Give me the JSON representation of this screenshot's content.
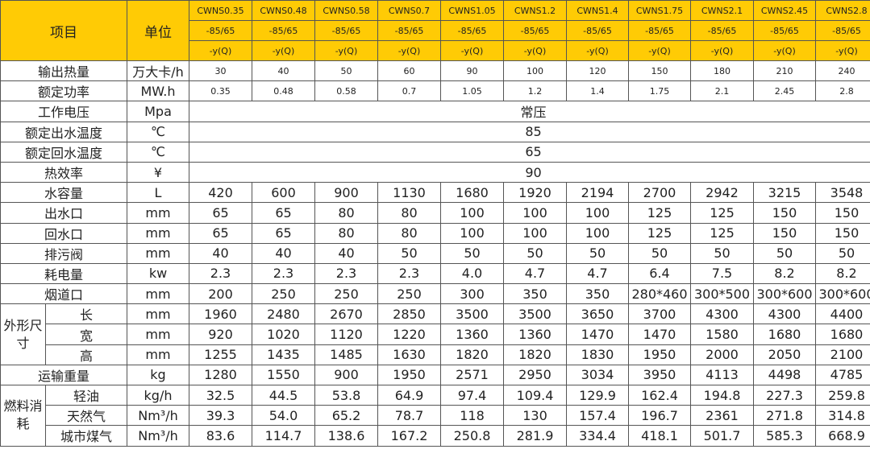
{
  "header": {
    "item_label": "项目",
    "unit_label": "单位",
    "models": [
      "CWNS0.35",
      "CWNS0.48",
      "CWNS0.58",
      "CWNS0.7",
      "CWNS1.05",
      "CWNS1.2",
      "CWNS1.4",
      "CWNS1.75",
      "CWNS2.1",
      "CWNS2.45",
      "CWNS2.8"
    ],
    "pressure_text": "-85/65",
    "type_text": "-y(Q)"
  },
  "rows": [
    {
      "label": "输出热量",
      "unit": "万大卡/h",
      "size": "sm",
      "values": [
        "30",
        "40",
        "50",
        "60",
        "90",
        "100",
        "120",
        "150",
        "180",
        "210",
        "240"
      ]
    },
    {
      "label": "额定功率",
      "unit": "MW.h",
      "size": "sm",
      "values": [
        "0.35",
        "0.48",
        "0.58",
        "0.7",
        "1.05",
        "1.2",
        "1.4",
        "1.75",
        "2.1",
        "2.45",
        "2.8"
      ]
    },
    {
      "label": "工作电压",
      "unit": "Mpa",
      "merged": "常压"
    },
    {
      "label": "额定出水温度",
      "unit": "℃",
      "merged": "85"
    },
    {
      "label": "额定回水温度",
      "unit": "℃",
      "merged": "65"
    },
    {
      "label": "热效率",
      "unit": "¥",
      "merged": "90"
    },
    {
      "label": "水容量",
      "unit": "L",
      "values": [
        "420",
        "600",
        "900",
        "1130",
        "1680",
        "1920",
        "2194",
        "2700",
        "2942",
        "3215",
        "3548"
      ]
    },
    {
      "label": "出水口",
      "unit": "mm",
      "values": [
        "65",
        "65",
        "80",
        "80",
        "100",
        "100",
        "100",
        "125",
        "125",
        "150",
        "150"
      ]
    },
    {
      "label": "回水口",
      "unit": "mm",
      "values": [
        "65",
        "65",
        "80",
        "80",
        "100",
        "100",
        "100",
        "125",
        "125",
        "150",
        "150"
      ]
    },
    {
      "label": "排污阀",
      "unit": "mm",
      "values": [
        "40",
        "40",
        "40",
        "50",
        "50",
        "50",
        "50",
        "50",
        "50",
        "50",
        "50"
      ]
    },
    {
      "label": "耗电量",
      "unit": "kw",
      "values": [
        "2.3",
        "2.3",
        "2.3",
        "2.3",
        "4.0",
        "4.7",
        "4.7",
        "6.4",
        "7.5",
        "8.2",
        "8.2"
      ]
    },
    {
      "label": "烟道口",
      "unit": "mm",
      "values": [
        "200",
        "250",
        "250",
        "250",
        "300",
        "350",
        "350",
        "280*460",
        "300*500",
        "300*600",
        "300*600"
      ]
    },
    {
      "group": "外形尺寸",
      "sub": "长",
      "unit": "mm",
      "values": [
        "1960",
        "2480",
        "2670",
        "2850",
        "3500",
        "3500",
        "3650",
        "3700",
        "4300",
        "4300",
        "4400"
      ]
    },
    {
      "group": "外形尺寸",
      "sub": "宽",
      "unit": "mm",
      "values": [
        "920",
        "1020",
        "1120",
        "1220",
        "1360",
        "1360",
        "1470",
        "1470",
        "1580",
        "1680",
        "1680"
      ]
    },
    {
      "group": "外形尺寸",
      "sub": "高",
      "unit": "mm",
      "values": [
        "1255",
        "1435",
        "1485",
        "1630",
        "1820",
        "1820",
        "1830",
        "1950",
        "2000",
        "2050",
        "2100"
      ]
    },
    {
      "label": "运输重量",
      "unit": "kg",
      "values": [
        "1280",
        "1550",
        "900",
        "1950",
        "2571",
        "2950",
        "3034",
        "3950",
        "4113",
        "4498",
        "4785"
      ]
    },
    {
      "group": "燃料消耗",
      "sub": "轻油",
      "unit": "kg/h",
      "values": [
        "32.5",
        "44.5",
        "53.8",
        "64.9",
        "97.4",
        "109.4",
        "129.9",
        "162.4",
        "194.8",
        "227.3",
        "259.8"
      ]
    },
    {
      "group": "燃料消耗",
      "sub": "天然气",
      "unit": "Nm³/h",
      "values": [
        "39.3",
        "54.0",
        "65.2",
        "78.7",
        "118",
        "130",
        "157.4",
        "196.7",
        "2361",
        "271.8",
        "314.8"
      ]
    },
    {
      "group": "燃料消耗",
      "sub": "城市煤气",
      "unit": "Nm³/h",
      "values": [
        "83.6",
        "114.7",
        "138.6",
        "167.2",
        "250.8",
        "281.9",
        "334.4",
        "418.1",
        "501.7",
        "585.3",
        "668.9"
      ]
    }
  ]
}
